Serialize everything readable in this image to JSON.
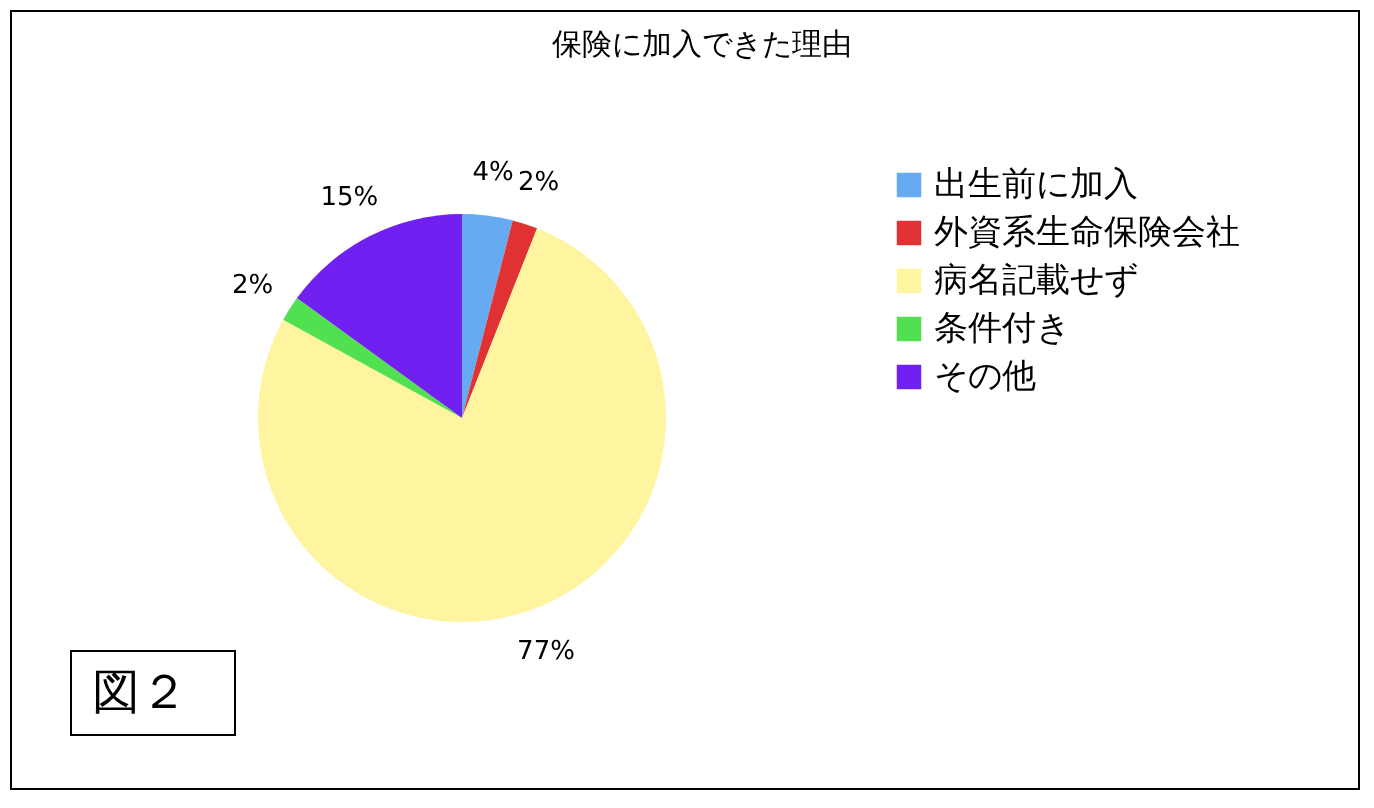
{
  "chart_data": {
    "type": "pie",
    "title": "保険に加入できた理由",
    "categories": [
      "出生前に加入",
      " 外資系生命保険会社",
      "病名記載せず",
      "条件付き",
      "その他"
    ],
    "values": [
      4,
      2,
      77,
      2,
      15
    ],
    "colors": [
      "#66aaf2",
      "#e03232",
      "#fff5a0",
      "#50e050",
      "#7020f0"
    ],
    "value_labels": [
      "4%",
      "2%",
      "77%",
      "2%",
      "15%"
    ],
    "legend": "right",
    "annotations": [
      "図２"
    ]
  }
}
